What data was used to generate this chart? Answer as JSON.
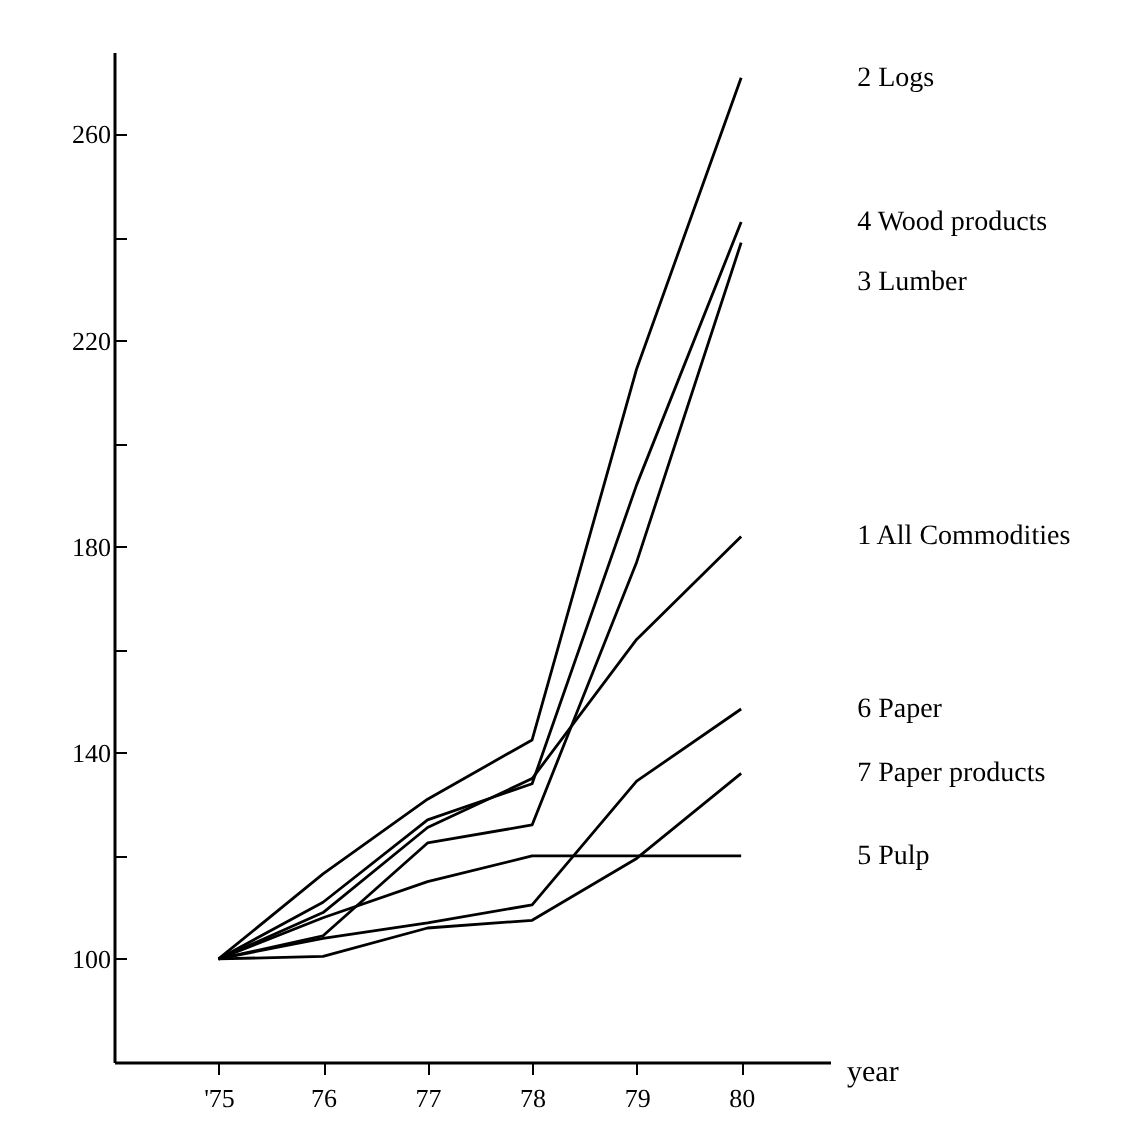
{
  "chart_data": {
    "type": "line",
    "xlabel": "year",
    "x": [
      75,
      76,
      77,
      78,
      79,
      80
    ],
    "xlim": [
      74,
      80.85
    ],
    "xticks": [
      {
        "value": 75,
        "label": "'75"
      },
      76,
      77,
      78,
      79,
      80
    ],
    "ylim": [
      80,
      276
    ],
    "yticks": [
      100,
      {
        "value": 120,
        "label": null
      },
      140,
      {
        "value": 160,
        "label": null
      },
      180,
      {
        "value": 200,
        "label": null
      },
      220,
      {
        "value": 240,
        "label": null
      },
      260
    ],
    "grid": false,
    "legend": false,
    "marker": "none",
    "line_style": "solid",
    "series": [
      {
        "name": "1 All Commodities",
        "color": "#000000",
        "values": [
          100,
          109,
          125.5,
          135,
          162,
          182
        ]
      },
      {
        "name": "2 Logs",
        "color": "#000000",
        "values": [
          100,
          116.5,
          131,
          142.5,
          214.5,
          271
        ]
      },
      {
        "name": "3 Lumber",
        "color": "#000000",
        "values": [
          100,
          104.5,
          122.5,
          126,
          177,
          239
        ]
      },
      {
        "name": "4 Wood products",
        "color": "#000000",
        "values": [
          100,
          111,
          127,
          134,
          192,
          243
        ]
      },
      {
        "name": "5 Pulp",
        "color": "#000000",
        "values": [
          100,
          108,
          115,
          120,
          120,
          120
        ]
      },
      {
        "name": "6 Paper",
        "color": "#000000",
        "values": [
          100,
          104,
          107,
          110.5,
          134.5,
          148.5
        ]
      },
      {
        "name": "7 Paper products",
        "color": "#000000",
        "values": [
          100,
          100.5,
          106,
          107.5,
          119.5,
          136
        ]
      }
    ]
  }
}
